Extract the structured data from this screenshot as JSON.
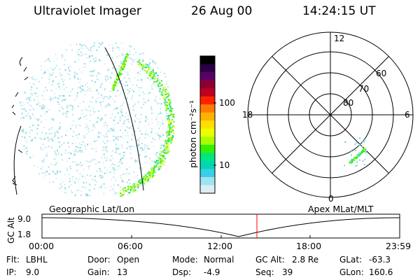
{
  "header": {
    "instrument": "Ultraviolet Imager",
    "date": "26 Aug 00",
    "time": "14:24:15 UT"
  },
  "left_image": {
    "caption": "Geographic Lat/Lon"
  },
  "colorbar": {
    "unit_label": "photon cm⁻²s⁻¹",
    "ticks": [
      "100",
      "10"
    ],
    "colors": [
      "#000000",
      "#2a0044",
      "#5b0066",
      "#8b0033",
      "#c0001e",
      "#ff2200",
      "#ff7a00",
      "#ffb000",
      "#ffdf00",
      "#ecff00",
      "#a6ff00",
      "#33f000",
      "#00e680",
      "#00d6b0",
      "#38d0e8",
      "#9ee3ee",
      "#dbeff3"
    ]
  },
  "polar_plot": {
    "caption": "Apex MLat/MLT",
    "mlt_labels": {
      "top": "12",
      "left": "18",
      "right": "6",
      "bottom": "0"
    },
    "lat_labels": [
      "60",
      "70",
      "80"
    ]
  },
  "altitude_plot": {
    "axis_label": "GC Alt",
    "y_ticks": [
      "9.0",
      "1.8"
    ],
    "x_ticks": [
      "00:00",
      "06:00",
      "12:00",
      "18:00",
      "23:59"
    ]
  },
  "footer": {
    "row1": [
      {
        "label": "Flt:",
        "value": "LBHL"
      },
      {
        "label": "Door:",
        "value": "Open"
      },
      {
        "label": "Mode:",
        "value": "Normal"
      },
      {
        "label": "GC Alt:",
        "value": "2.8 Re"
      },
      {
        "label": "GLat:",
        "value": "-63.3"
      }
    ],
    "row2": [
      {
        "label": "IP:",
        "value": "9.0"
      },
      {
        "label": "Gain:",
        "value": "13"
      },
      {
        "label": "Dsp:",
        "value": "-4.9"
      },
      {
        "label": "Seq:",
        "value": "39"
      },
      {
        "label": "GLon:",
        "value": "160.6"
      }
    ]
  }
}
